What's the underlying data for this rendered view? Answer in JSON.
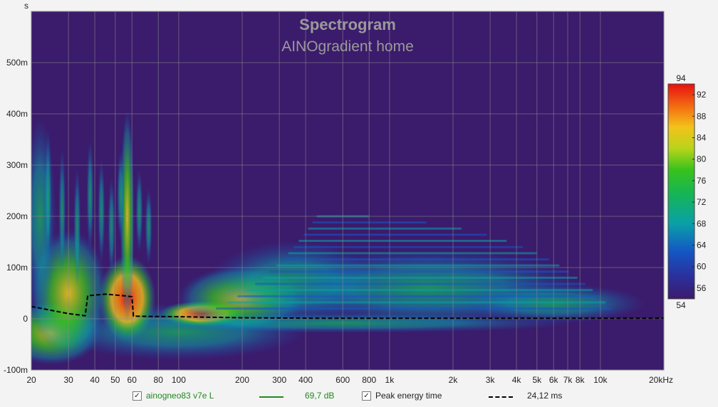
{
  "chart_data": {
    "type": "heatmap",
    "title": "Spectrogram",
    "subtitle": "AINOgradient home",
    "ylabel": "s",
    "xscale": "log",
    "xlim": [
      20,
      20000
    ],
    "ylim": [
      -0.1,
      0.6
    ],
    "x_ticks": [
      "20",
      "30",
      "40",
      "50",
      "60",
      "80",
      "100",
      "200",
      "300",
      "400",
      "600",
      "800",
      "1k",
      "2k",
      "3k",
      "4k",
      "5k",
      "6k",
      "7k",
      "8k",
      "10k",
      "20kHz"
    ],
    "x_tick_values": [
      20,
      30,
      40,
      50,
      60,
      80,
      100,
      200,
      300,
      400,
      600,
      800,
      1000,
      2000,
      3000,
      4000,
      5000,
      6000,
      7000,
      8000,
      10000,
      20000
    ],
    "y_ticks": [
      "500m",
      "400m",
      "300m",
      "200m",
      "100m",
      "0",
      "-100m"
    ],
    "y_tick_values": [
      0.5,
      0.4,
      0.3,
      0.2,
      0.1,
      0,
      -0.1
    ],
    "colorbar": {
      "min": 54,
      "max": 94,
      "ticks": [
        "92",
        "88",
        "84",
        "80",
        "76",
        "72",
        "68",
        "64",
        "60",
        "56"
      ],
      "tick_values": [
        92,
        88,
        84,
        80,
        76,
        72,
        68,
        64,
        60,
        56
      ],
      "top_label": "94",
      "bottom_label": "54"
    },
    "grid": true,
    "peak_energy_time": {
      "x": [
        20,
        30,
        36,
        37,
        45,
        55,
        60,
        61,
        100,
        200,
        500,
        1000,
        5000,
        20000
      ],
      "y": [
        0.024,
        0.01,
        0.006,
        0.045,
        0.048,
        0.045,
        0.043,
        0.005,
        0.004,
        0.002,
        0.001,
        0.001,
        0.001,
        0.001
      ]
    },
    "background_color": "#3b1b6b"
  },
  "legend": {
    "series": {
      "checked": "✓",
      "name": "ainogneo83 v7e L",
      "value": "69,7 dB",
      "color": "#1f8a1f"
    },
    "peak": {
      "checked": "✓",
      "name": "Peak energy time",
      "value": "24,12 ms",
      "color": "#000000"
    }
  }
}
